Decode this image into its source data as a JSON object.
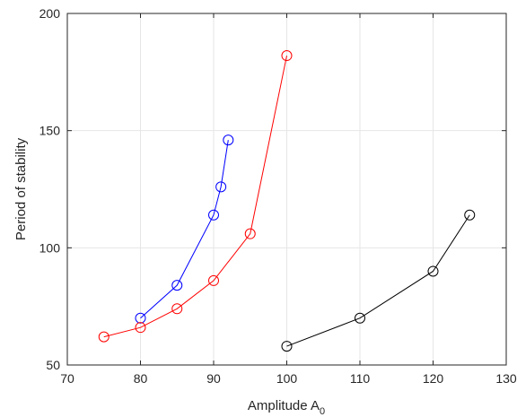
{
  "chart_data": {
    "type": "line",
    "title": "",
    "xlabel": "Amplitude A",
    "xlabel_subscript": "0",
    "ylabel": "Period of stability",
    "xlim": [
      70,
      130
    ],
    "ylim": [
      50,
      200
    ],
    "xticks": [
      "70",
      "80",
      "90",
      "100",
      "110",
      "120",
      "130"
    ],
    "yticks": [
      "50",
      "100",
      "150",
      "200"
    ],
    "grid": true,
    "series": [
      {
        "color": "#0000ff",
        "marker": "circle",
        "x": [
          80,
          85,
          90,
          91,
          92
        ],
        "y": [
          70,
          84,
          114,
          126,
          146
        ]
      },
      {
        "color": "#ff0000",
        "marker": "circle",
        "x": [
          75,
          80,
          85,
          90,
          95,
          100
        ],
        "y": [
          62,
          66,
          74,
          86,
          106,
          182
        ]
      },
      {
        "color": "#000000",
        "marker": "circle",
        "x": [
          100,
          110,
          120,
          125
        ],
        "y": [
          58,
          70,
          90,
          114
        ]
      }
    ]
  }
}
